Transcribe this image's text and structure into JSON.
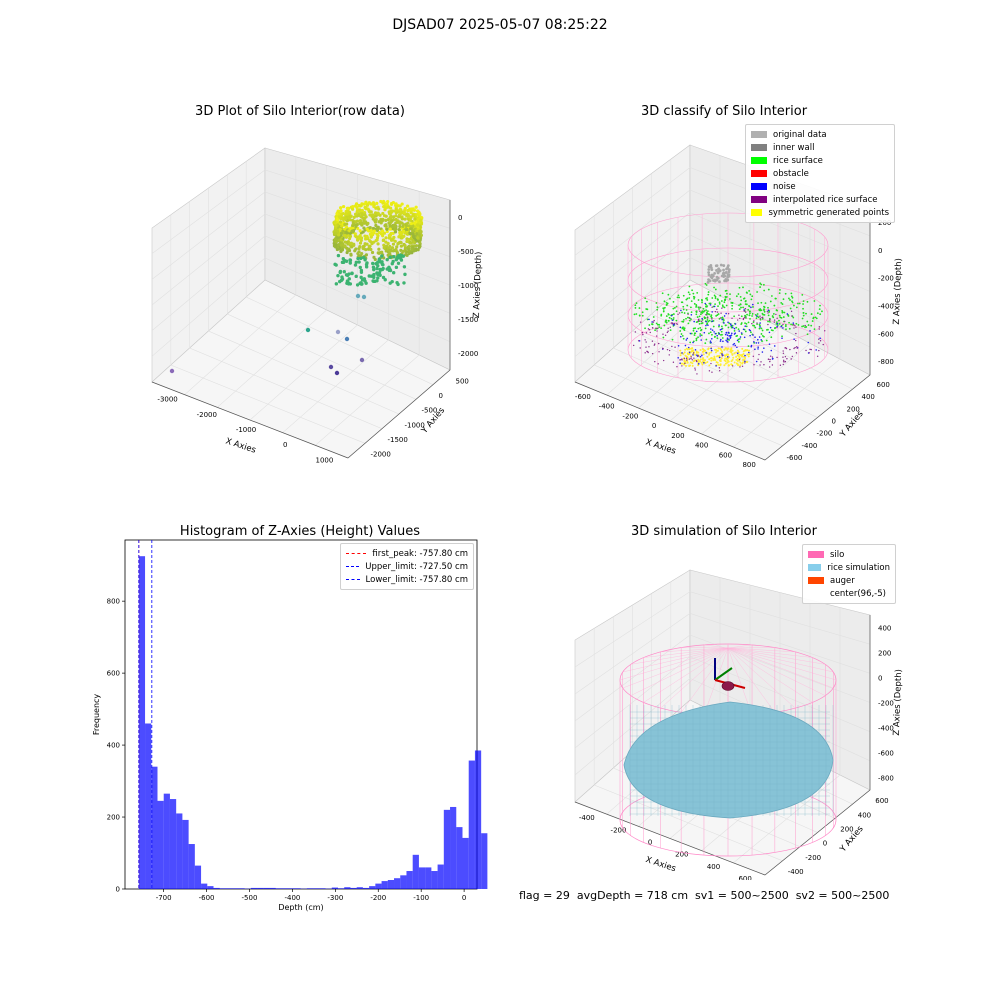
{
  "suptitle": "DJSAD07 2025-05-07 08:25:22",
  "panels": {
    "raw": {
      "title": "3D Plot of Silo Interior(row data)",
      "xlabel": "X Axies",
      "ylabel": "Y Axies",
      "zlabel": "Z Axies (Depth)",
      "xticks": [
        "-3000",
        "-2000",
        "-1000",
        "0",
        "1000"
      ],
      "yticks": [
        "500",
        "0",
        "-500",
        "-1000",
        "-1500",
        "-2000"
      ],
      "zticks": [
        "0",
        "-500",
        "-1000",
        "-1500",
        "-2000"
      ]
    },
    "classify": {
      "title": "3D classify of Silo Interior",
      "xlabel": "X Axies",
      "ylabel": "Y Axies",
      "zlabel": "Z Axies (Depth)",
      "xticks": [
        "-600",
        "-400",
        "-200",
        "0",
        "200",
        "400",
        "600",
        "800"
      ],
      "yticks": [
        "600",
        "400",
        "200",
        "0",
        "-200",
        "-400",
        "-600"
      ],
      "zticks": [
        "200",
        "0",
        "-200",
        "-400",
        "-600",
        "-800"
      ],
      "legend": [
        {
          "label": "original data",
          "color": "#b0b0b0"
        },
        {
          "label": "inner wall",
          "color": "#808080"
        },
        {
          "label": "rice surface",
          "color": "#00ff00"
        },
        {
          "label": "obstacle",
          "color": "#ff0000"
        },
        {
          "label": "noise",
          "color": "#0000ff"
        },
        {
          "label": "interpolated rice surface",
          "color": "#800080"
        },
        {
          "label": "symmetric generated points",
          "color": "#ffff00"
        }
      ]
    },
    "simulation": {
      "title": "3D simulation of Silo Interior",
      "xlabel": "X Axies",
      "ylabel": "Y Axies",
      "zlabel": "Z Axies (Depth)",
      "xticks": [
        "-400",
        "-200",
        "0",
        "200",
        "400",
        "600"
      ],
      "yticks": [
        "600",
        "400",
        "200",
        "0",
        "-200",
        "-400"
      ],
      "zticks": [
        "400",
        "200",
        "0",
        "-200",
        "-400",
        "-600",
        "-800"
      ],
      "legend": [
        {
          "label": "silo",
          "color": "#ff69b4"
        },
        {
          "label": "rice simulation",
          "color": "#87ceeb"
        },
        {
          "label": "auger",
          "color": "#ff4500"
        },
        {
          "label": "center(96,-5)",
          "color": "#ffffff"
        }
      ]
    }
  },
  "chart_data": {
    "type": "bar",
    "title": "Histogram of Z-Axies (Height) Values",
    "xlabel": "Depth (cm)",
    "ylabel": "Frequency",
    "xlim": [
      -790,
      30
    ],
    "ylim": [
      0,
      970
    ],
    "xticks": [
      -700,
      -600,
      -500,
      -400,
      -300,
      -200,
      -100,
      0
    ],
    "yticks": [
      0,
      200,
      400,
      600,
      800
    ],
    "bar_color": "#0000ff",
    "bin_width": 14.5,
    "bin_start": -757.8,
    "values": [
      925,
      460,
      340,
      245,
      265,
      250,
      210,
      192,
      125,
      65,
      15,
      8,
      3,
      2,
      2,
      2,
      2,
      1,
      3,
      3,
      3,
      3,
      2,
      2,
      2,
      2,
      1,
      2,
      2,
      2,
      1,
      4,
      2,
      5,
      3,
      5,
      3,
      8,
      15,
      22,
      25,
      30,
      38,
      50,
      95,
      60,
      60,
      50,
      68,
      220,
      228,
      172,
      142,
      357,
      385,
      155
    ],
    "vlines": [
      {
        "label": "first_peak: -757.80 cm",
        "x": -757.8,
        "color": "#ff0000"
      },
      {
        "label": "Upper_limit: -727.50 cm",
        "x": -727.5,
        "color": "#0000ff"
      },
      {
        "label": "Lower_limit: -757.80 cm",
        "x": -757.8,
        "color": "#0000ff"
      }
    ],
    "legend_position": "top-right"
  },
  "footer": "flag = 29  avgDepth = 718 cm  sv1 = 500~2500  sv2 = 500~2500"
}
